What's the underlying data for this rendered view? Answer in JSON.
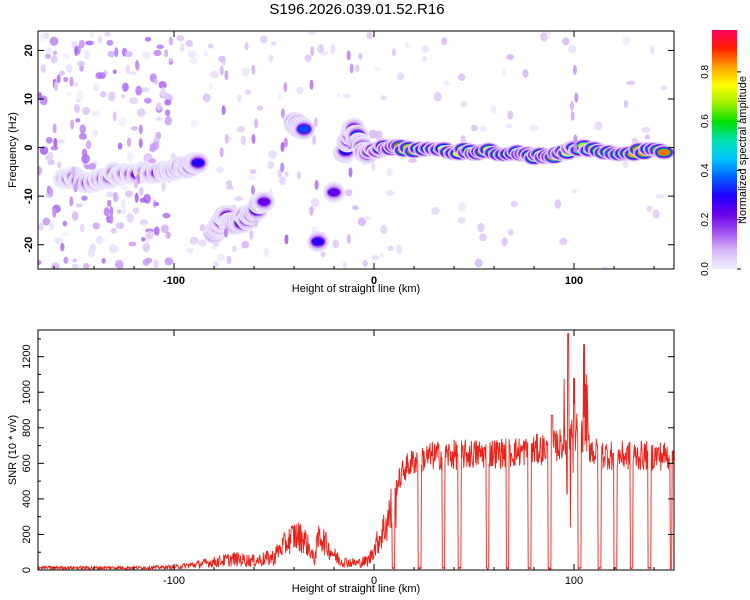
{
  "title": "S196.2026.039.01.52.R16",
  "chart_data": [
    {
      "type": "heatmap",
      "xlabel": "Height of straight line (km)",
      "ylabel": "Frequency (Hz)",
      "xlim": [
        -168,
        150
      ],
      "ylim": [
        -25,
        24
      ],
      "xticks": [
        -100,
        0,
        100
      ],
      "yticks": [
        -20,
        -10,
        0,
        10,
        20
      ],
      "colorbar": {
        "label": "Normalized spectral amplitude",
        "range": [
          0,
          0.97
        ],
        "ticks": [
          0.0,
          0.2,
          0.4,
          0.6,
          0.8
        ],
        "colormap": [
          "#f0f0ff",
          "#d8b8f8",
          "#a050f0",
          "#6a00e8",
          "#2000ff",
          "#0060ff",
          "#00c8ff",
          "#00e0b0",
          "#00e000",
          "#a0f000",
          "#ffff00",
          "#ffa000",
          "#ff2000",
          "#ff0060"
        ]
      },
      "ridge": [
        {
          "x": -155,
          "f": -6,
          "a": 0.15
        },
        {
          "x": -140,
          "f": -7,
          "a": 0.2
        },
        {
          "x": -125,
          "f": -5,
          "a": 0.15
        },
        {
          "x": -105,
          "f": -5,
          "a": 0.2
        },
        {
          "x": -95,
          "f": -4,
          "a": 0.3
        },
        {
          "x": -88,
          "f": -3,
          "a": 0.25
        },
        {
          "x": -80,
          "f": -18,
          "a": 0.3
        },
        {
          "x": -75,
          "f": -14,
          "a": 0.35
        },
        {
          "x": -70,
          "f": -16,
          "a": 0.3
        },
        {
          "x": -62,
          "f": -14,
          "a": 0.35
        },
        {
          "x": -55,
          "f": -11,
          "a": 0.3
        },
        {
          "x": -40,
          "f": 5,
          "a": 0.3
        },
        {
          "x": -35,
          "f": 4,
          "a": 0.3
        },
        {
          "x": -28,
          "f": -19,
          "a": 0.3
        },
        {
          "x": -20,
          "f": -9,
          "a": 0.3
        },
        {
          "x": -15,
          "f": -1,
          "a": 0.3
        },
        {
          "x": -10,
          "f": 4,
          "a": 0.3
        },
        {
          "x": -5,
          "f": -1,
          "a": 0.35
        },
        {
          "x": 5,
          "f": 0,
          "a": 0.55
        },
        {
          "x": 15,
          "f": -0.3,
          "a": 0.9
        },
        {
          "x": 30,
          "f": -0.5,
          "a": 0.7
        },
        {
          "x": 45,
          "f": -0.8,
          "a": 0.75
        },
        {
          "x": 55,
          "f": -0.8,
          "a": 0.85
        },
        {
          "x": 70,
          "f": -1.3,
          "a": 0.8
        },
        {
          "x": 80,
          "f": -1.8,
          "a": 0.85
        },
        {
          "x": 90,
          "f": -2,
          "a": 0.85
        },
        {
          "x": 100,
          "f": 0,
          "a": 0.5
        },
        {
          "x": 115,
          "f": -0.8,
          "a": 0.9
        },
        {
          "x": 130,
          "f": -0.8,
          "a": 0.85
        },
        {
          "x": 145,
          "f": -1,
          "a": 0.85
        }
      ]
    },
    {
      "type": "line",
      "xlabel": "Height of straight line (km)",
      "ylabel": "SNR (10 * v/v)",
      "xlim": [
        -168,
        150
      ],
      "ylim": [
        0,
        1350
      ],
      "xticks": [
        -100,
        0,
        100
      ],
      "yticks": [
        0,
        200,
        400,
        600,
        800,
        1000,
        1200
      ],
      "color": "#e8231a",
      "envelope": [
        {
          "x": -168,
          "y": 20
        },
        {
          "x": -120,
          "y": 20
        },
        {
          "x": -100,
          "y": 25
        },
        {
          "x": -90,
          "y": 45
        },
        {
          "x": -80,
          "y": 70
        },
        {
          "x": -70,
          "y": 95
        },
        {
          "x": -60,
          "y": 80
        },
        {
          "x": -50,
          "y": 110
        },
        {
          "x": -40,
          "y": 250
        },
        {
          "x": -35,
          "y": 230
        },
        {
          "x": -30,
          "y": 90
        },
        {
          "x": -27,
          "y": 260
        },
        {
          "x": -22,
          "y": 140
        },
        {
          "x": -15,
          "y": 70
        },
        {
          "x": -8,
          "y": 60
        },
        {
          "x": -3,
          "y": 80
        },
        {
          "x": 0,
          "y": 150
        },
        {
          "x": 5,
          "y": 300
        },
        {
          "x": 10,
          "y": 470
        },
        {
          "x": 15,
          "y": 600
        },
        {
          "x": 20,
          "y": 650
        },
        {
          "x": 30,
          "y": 680
        },
        {
          "x": 50,
          "y": 690
        },
        {
          "x": 70,
          "y": 700
        },
        {
          "x": 85,
          "y": 720
        },
        {
          "x": 95,
          "y": 750
        },
        {
          "x": 100,
          "y": 850
        },
        {
          "x": 110,
          "y": 700
        },
        {
          "x": 120,
          "y": 680
        },
        {
          "x": 150,
          "y": 680
        }
      ],
      "dropouts": [
        [
          9,
          10.5
        ],
        [
          22,
          23.5
        ],
        [
          34,
          35.5
        ],
        [
          42,
          43.5
        ],
        [
          56,
          57.5
        ],
        [
          66,
          67.5
        ],
        [
          77,
          78.5
        ],
        [
          87,
          88.5
        ],
        [
          102,
          103.5
        ],
        [
          112,
          113.5
        ],
        [
          120,
          121.5
        ],
        [
          128,
          129.5
        ],
        [
          137,
          138.5
        ],
        [
          148,
          149
        ]
      ],
      "spikes": [
        {
          "x": 89,
          "y": 870
        },
        {
          "x": 97,
          "y": 1330
        },
        {
          "x": 100,
          "y": 1080
        },
        {
          "x": 105,
          "y": 1270
        }
      ]
    }
  ]
}
